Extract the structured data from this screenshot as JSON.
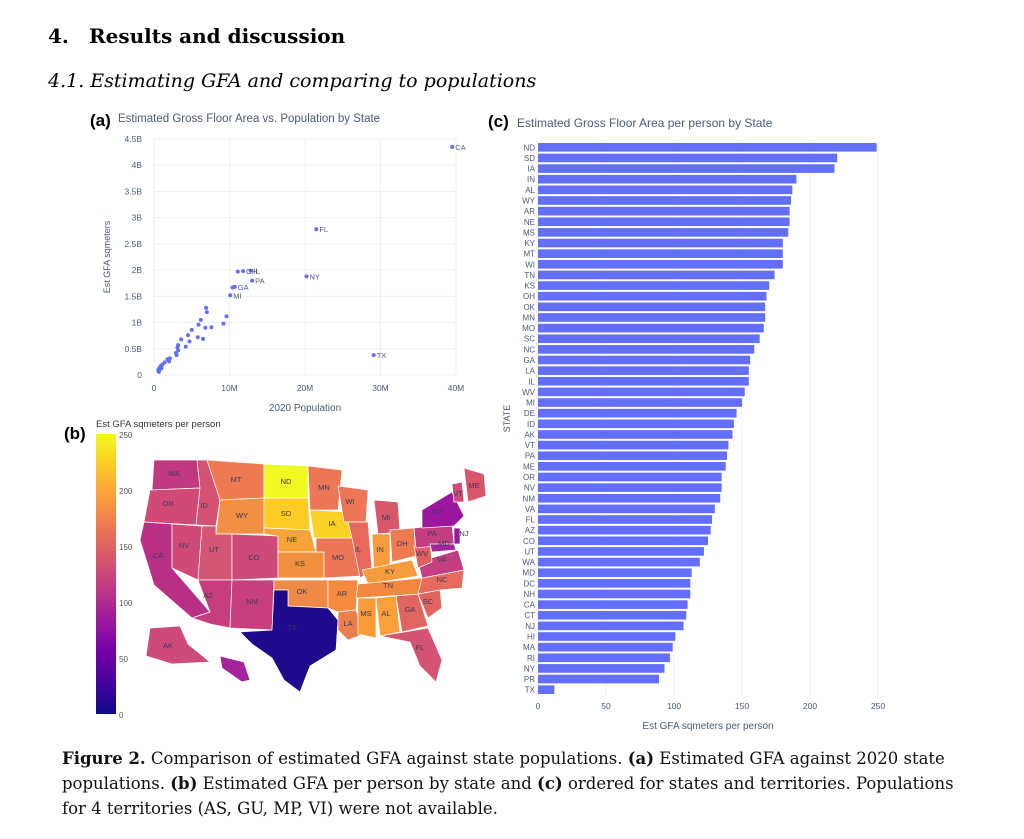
{
  "section": {
    "number": "4.",
    "title": "Results and discussion"
  },
  "subsection": {
    "title": "4.1. Estimating GFA and comparing to populations"
  },
  "panel_labels": {
    "a": "(a)",
    "b": "(b)",
    "c": "(c)"
  },
  "caption": {
    "lead": "Figure 2.",
    "text1": " Comparison of estimated GFA against state populations. ",
    "a": "(a)",
    "text2": " Estimated GFA against 2020 state populations. ",
    "b": "(b)",
    "text3": " Estimated GFA per person by state and ",
    "c": "(c)",
    "text4": " ordered for states and territories. Populations for 4 territories (AS, GU, MP, VI) were not available."
  },
  "colors": {
    "marker": "#636efa",
    "bar": "#636efa",
    "axis_text": "#4a5a7a",
    "grid": "#eef0f5"
  },
  "map": {
    "colorbar_title": "Est GFA sqmeters per person",
    "colorbar_ticks": [
      "250",
      "200",
      "150",
      "100",
      "50",
      "0"
    ],
    "colorscale": [
      "#0d0887",
      "#46039f",
      "#7201a8",
      "#9c179e",
      "#bd3786",
      "#d8576b",
      "#ed7953",
      "#fb9f3a",
      "#fdca26",
      "#f0f921"
    ],
    "state_labels": [
      "WA",
      "OR",
      "ID",
      "MT",
      "ND",
      "MN",
      "WI",
      "MI",
      "NV",
      "CA",
      "UT",
      "WY",
      "SD",
      "NE",
      "IA",
      "IL",
      "IN",
      "OH",
      "PA",
      "NY",
      "VT",
      "ME",
      "CO",
      "KS",
      "MO",
      "KY",
      "WV",
      "VA",
      "AZ",
      "NM",
      "OK",
      "AR",
      "TN",
      "NC",
      "SC",
      "TX",
      "LA",
      "MS",
      "AL",
      "GA",
      "FL",
      "AK",
      "NJ",
      "MD"
    ]
  },
  "chart_data": [
    {
      "type": "scatter",
      "title": "Estimated Gross Floor Area vs. Population by State",
      "xlabel": "2020 Population",
      "ylabel": "Est GFA sqmeters",
      "xlim": [
        0,
        40000000
      ],
      "ylim": [
        0,
        4500000000
      ],
      "x_ticks": [
        "0",
        "10M",
        "20M",
        "30M",
        "40M"
      ],
      "y_ticks": [
        "0",
        "0.5B",
        "1B",
        "1.5B",
        "2B",
        "2.5B",
        "3B",
        "3.5B",
        "4B",
        "4.5B"
      ],
      "labeled_points": [
        {
          "label": "CA",
          "x": 39500000,
          "y": 4350000000
        },
        {
          "label": "FL",
          "x": 21500000,
          "y": 2780000000
        },
        {
          "label": "NY",
          "x": 20200000,
          "y": 1880000000
        },
        {
          "label": "TX",
          "x": 29100000,
          "y": 380000000
        },
        {
          "label": "PA",
          "x": 13000000,
          "y": 1800000000
        },
        {
          "label": "IL",
          "x": 12800000,
          "y": 1990000000
        },
        {
          "label": "OH",
          "x": 11800000,
          "y": 1980000000
        },
        {
          "label": "GA",
          "x": 10700000,
          "y": 1680000000
        },
        {
          "label": "MI",
          "x": 10100000,
          "y": 1520000000
        }
      ],
      "points": [
        {
          "x": 11100000,
          "y": 1970000000
        },
        {
          "x": 10400000,
          "y": 1670000000
        },
        {
          "x": 6900000,
          "y": 1280000000
        },
        {
          "x": 7000000,
          "y": 1200000000
        },
        {
          "x": 9600000,
          "y": 1120000000
        },
        {
          "x": 6200000,
          "y": 1050000000
        },
        {
          "x": 9200000,
          "y": 980000000
        },
        {
          "x": 5900000,
          "y": 960000000
        },
        {
          "x": 6800000,
          "y": 900000000
        },
        {
          "x": 7600000,
          "y": 910000000
        },
        {
          "x": 5000000,
          "y": 860000000
        },
        {
          "x": 4500000,
          "y": 760000000
        },
        {
          "x": 5800000,
          "y": 720000000
        },
        {
          "x": 3600000,
          "y": 680000000
        },
        {
          "x": 4700000,
          "y": 640000000
        },
        {
          "x": 6500000,
          "y": 690000000
        },
        {
          "x": 3200000,
          "y": 570000000
        },
        {
          "x": 3100000,
          "y": 530000000
        },
        {
          "x": 4200000,
          "y": 540000000
        },
        {
          "x": 3200000,
          "y": 470000000
        },
        {
          "x": 2900000,
          "y": 420000000
        },
        {
          "x": 3000000,
          "y": 380000000
        },
        {
          "x": 2100000,
          "y": 320000000
        },
        {
          "x": 1800000,
          "y": 300000000
        },
        {
          "x": 2000000,
          "y": 260000000
        },
        {
          "x": 1400000,
          "y": 240000000
        },
        {
          "x": 1100000,
          "y": 200000000
        },
        {
          "x": 900000,
          "y": 170000000
        },
        {
          "x": 1000000,
          "y": 130000000
        },
        {
          "x": 800000,
          "y": 150000000
        },
        {
          "x": 600000,
          "y": 110000000
        },
        {
          "x": 700000,
          "y": 90000000
        },
        {
          "x": 580000,
          "y": 80000000
        },
        {
          "x": 640000,
          "y": 60000000
        }
      ]
    },
    {
      "type": "bar",
      "orientation": "horizontal",
      "title": "Estimated Gross Floor Area per person by State",
      "xlabel": "Est GFA sqmeters per person",
      "ylabel": "STATE",
      "xlim": [
        0,
        250
      ],
      "x_ticks": [
        "0",
        "50",
        "100",
        "150",
        "200",
        "250"
      ],
      "categories": [
        "ND",
        "SD",
        "IA",
        "IN",
        "AL",
        "WY",
        "AR",
        "NE",
        "MS",
        "KY",
        "MT",
        "WI",
        "TN",
        "KS",
        "OH",
        "OK",
        "MN",
        "MO",
        "SC",
        "NC",
        "GA",
        "LA",
        "IL",
        "WV",
        "MI",
        "DE",
        "ID",
        "AK",
        "VT",
        "PA",
        "ME",
        "OR",
        "NV",
        "NM",
        "VA",
        "FL",
        "AZ",
        "CO",
        "UT",
        "WA",
        "MD",
        "DC",
        "NH",
        "CA",
        "CT",
        "NJ",
        "HI",
        "MA",
        "RI",
        "NY",
        "PR",
        "TX"
      ],
      "values": [
        249,
        220,
        218,
        190,
        187,
        186,
        185,
        185,
        184,
        180,
        180,
        180,
        174,
        170,
        168,
        167,
        167,
        166,
        163,
        159,
        156,
        155,
        155,
        152,
        150,
        146,
        144,
        143,
        140,
        139,
        138,
        135,
        135,
        134,
        130,
        128,
        127,
        125,
        122,
        119,
        113,
        112,
        112,
        110,
        109,
        107,
        101,
        99,
        97,
        93,
        89,
        12
      ]
    }
  ]
}
